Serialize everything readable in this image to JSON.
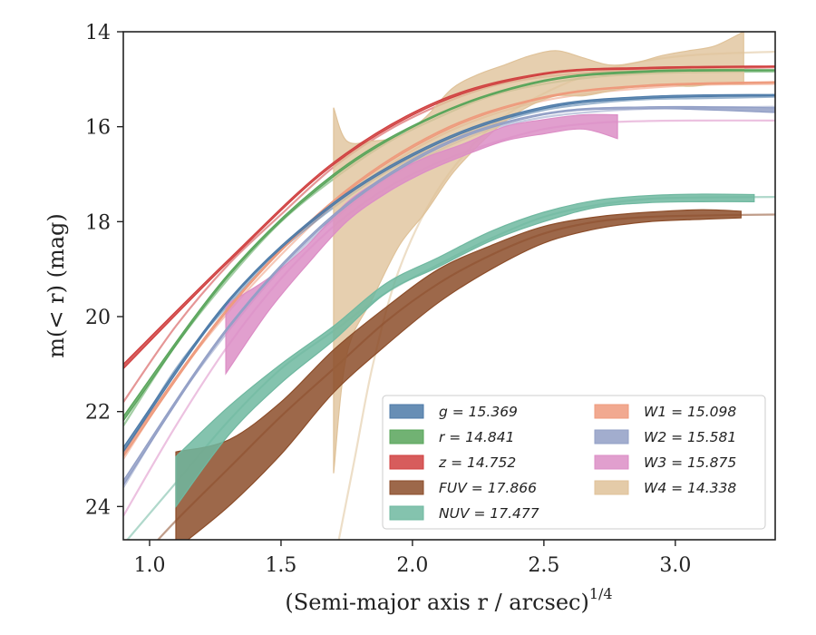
{
  "chart_data": {
    "type": "area",
    "xlabel": "(Semi-major axis r / arcsec)",
    "xlabel_superscript": "1/4",
    "ylabel": "m(< r) (mag)",
    "xlim": [
      0.9,
      3.38
    ],
    "ylim": [
      24.7,
      14.0
    ],
    "y_inverted": true,
    "grid": false,
    "legend_placement": "lower-right",
    "legend_columns": 2,
    "x_ticks": [
      "1.0",
      "1.5",
      "2.0",
      "2.5",
      "3.0"
    ],
    "y_ticks": [
      "14",
      "16",
      "18",
      "20",
      "22",
      "24"
    ],
    "colors": {
      "g": "#4c7aa8",
      "r": "#58a55a",
      "z": "#d03f3f",
      "FUV": "#8c4d2a",
      "NUV": "#6fb8a0",
      "W1": "#ee9a7c",
      "W2": "#929fc6",
      "W3": "#dc8ec6",
      "W4": "#dfc299"
    },
    "series": [
      {
        "name": "g = 15.369",
        "band": "g",
        "model_x": [
          0.9,
          1.1,
          1.3,
          1.5,
          1.7,
          1.9,
          2.1,
          2.3,
          2.5,
          2.7,
          2.9,
          3.1,
          3.38
        ],
        "model_y": [
          22.9,
          21.1,
          19.75,
          18.6,
          17.7,
          16.95,
          16.4,
          15.95,
          15.65,
          15.5,
          15.42,
          15.4,
          15.37
        ],
        "band_x": [
          0.9,
          1.3,
          1.7,
          2.1,
          2.5,
          2.9,
          3.38
        ],
        "band_lo": [
          22.85,
          19.7,
          17.65,
          16.35,
          15.62,
          15.4,
          15.35
        ],
        "band_hi": [
          22.75,
          19.65,
          17.6,
          16.3,
          15.58,
          15.36,
          15.32
        ]
      },
      {
        "name": "r = 14.841",
        "band": "r",
        "model_x": [
          0.9,
          1.1,
          1.3,
          1.5,
          1.7,
          1.9,
          2.1,
          2.3,
          2.5,
          2.7,
          2.9,
          3.1,
          3.38
        ],
        "model_y": [
          22.3,
          20.6,
          19.2,
          18.0,
          17.1,
          16.35,
          15.8,
          15.35,
          15.1,
          14.95,
          14.88,
          14.85,
          14.84
        ],
        "band_x": [
          0.9,
          1.3,
          1.7,
          2.1,
          2.5,
          2.9,
          3.38
        ],
        "band_lo": [
          22.2,
          19.15,
          17.05,
          15.75,
          15.05,
          14.85,
          14.82
        ],
        "band_hi": [
          22.1,
          19.1,
          17.0,
          15.72,
          15.02,
          14.82,
          14.8
        ]
      },
      {
        "name": "z = 14.752",
        "band": "z",
        "model_x": [
          0.9,
          1.1,
          1.3,
          1.5,
          1.7,
          1.9,
          2.1,
          2.3,
          2.5,
          2.7,
          2.9,
          3.1,
          3.38
        ],
        "model_y": [
          21.8,
          20.2,
          18.9,
          17.85,
          16.85,
          16.1,
          15.55,
          15.15,
          14.95,
          14.85,
          14.8,
          14.78,
          14.75
        ],
        "band_x": [
          0.9,
          1.3,
          1.7,
          2.1,
          2.5,
          2.9,
          3.38
        ],
        "band_lo": [
          21.1,
          18.85,
          16.8,
          15.5,
          14.9,
          14.78,
          14.74
        ],
        "band_hi": [
          21.0,
          18.8,
          16.75,
          15.45,
          14.87,
          14.75,
          14.72
        ]
      },
      {
        "name": "FUV = 17.866",
        "band": "FUV",
        "model_x": [
          0.95,
          1.1,
          1.3,
          1.5,
          1.7,
          1.9,
          2.1,
          2.3,
          2.5,
          2.7,
          2.9,
          3.1,
          3.38
        ],
        "model_y": [
          25.2,
          24.3,
          23.2,
          22.1,
          21.1,
          20.1,
          19.3,
          18.7,
          18.25,
          18.0,
          17.9,
          17.87,
          17.85
        ],
        "band_x": [
          1.1,
          1.3,
          1.5,
          1.7,
          1.9,
          2.1,
          2.3,
          2.5,
          2.7,
          2.9,
          3.1,
          3.25
        ],
        "band_lo": [
          24.9,
          24.0,
          22.9,
          21.6,
          20.6,
          19.7,
          19.0,
          18.45,
          18.15,
          18.0,
          17.95,
          17.92
        ],
        "band_hi": [
          22.85,
          22.6,
          21.8,
          20.7,
          19.8,
          19.0,
          18.5,
          18.1,
          17.9,
          17.8,
          17.75,
          17.78
        ]
      },
      {
        "name": "NUV = 17.477",
        "band": "NUV",
        "model_x": [
          0.9,
          1.1,
          1.3,
          1.5,
          1.7,
          1.9,
          2.1,
          2.3,
          2.5,
          2.7,
          2.9,
          3.1,
          3.38
        ],
        "model_y": [
          24.8,
          23.5,
          22.2,
          21.1,
          20.3,
          19.5,
          18.9,
          18.35,
          17.9,
          17.65,
          17.52,
          17.49,
          17.48
        ],
        "band_x": [
          1.1,
          1.3,
          1.5,
          1.7,
          1.9,
          2.1,
          2.3,
          2.5,
          2.7,
          2.9,
          3.1,
          3.3
        ],
        "band_lo": [
          24.0,
          22.5,
          21.4,
          20.5,
          19.5,
          18.95,
          18.4,
          18.0,
          17.7,
          17.6,
          17.58,
          17.58
        ],
        "band_hi": [
          22.95,
          21.9,
          21.0,
          20.2,
          19.3,
          18.75,
          18.2,
          17.8,
          17.55,
          17.45,
          17.42,
          17.43
        ]
      },
      {
        "name": "W1 = 15.098",
        "band": "W1",
        "model_x": [
          0.9,
          1.1,
          1.3,
          1.5,
          1.7,
          1.9,
          2.1,
          2.3,
          2.5,
          2.7,
          2.9,
          3.1,
          3.38
        ],
        "model_y": [
          23.0,
          21.3,
          19.9,
          18.7,
          17.65,
          16.85,
          16.2,
          15.75,
          15.45,
          15.28,
          15.18,
          15.12,
          15.1
        ],
        "band_x": [
          0.9,
          1.3,
          1.7,
          2.1,
          2.5,
          2.9,
          3.38
        ],
        "band_lo": [
          22.95,
          19.85,
          17.6,
          16.15,
          15.4,
          15.15,
          15.08
        ],
        "band_hi": [
          22.85,
          19.8,
          17.55,
          16.1,
          15.37,
          15.12,
          15.05
        ]
      },
      {
        "name": "W2 = 15.581",
        "band": "W2",
        "model_x": [
          0.9,
          1.1,
          1.3,
          1.5,
          1.7,
          1.9,
          2.1,
          2.3,
          2.5,
          2.7,
          2.9,
          3.1,
          3.38
        ],
        "model_y": [
          23.6,
          21.8,
          20.3,
          19.0,
          17.95,
          17.1,
          16.5,
          16.05,
          15.8,
          15.68,
          15.62,
          15.6,
          15.58
        ],
        "band_x": [
          0.9,
          1.3,
          1.7,
          2.1,
          2.5,
          2.9,
          3.38
        ],
        "band_lo": [
          23.55,
          20.25,
          17.9,
          16.45,
          15.75,
          15.62,
          15.7
        ],
        "band_hi": [
          23.45,
          20.2,
          17.85,
          16.4,
          15.72,
          15.58,
          15.6
        ]
      },
      {
        "name": "W3 = 15.875",
        "band": "W3",
        "model_x": [
          0.9,
          1.1,
          1.3,
          1.5,
          1.7,
          1.9,
          2.1,
          2.3,
          2.5,
          2.7,
          2.9,
          3.1,
          3.38
        ],
        "model_y": [
          24.2,
          22.3,
          20.6,
          19.2,
          18.1,
          17.3,
          16.75,
          16.35,
          16.05,
          15.92,
          15.88,
          15.87,
          15.87
        ],
        "band_x": [
          1.29,
          1.45,
          1.6,
          1.75,
          1.9,
          2.05,
          2.2,
          2.35,
          2.5,
          2.65,
          2.78
        ],
        "band_lo": [
          21.2,
          19.9,
          18.9,
          18.0,
          17.4,
          16.95,
          16.6,
          16.3,
          16.15,
          16.05,
          16.25
        ],
        "band_hi": [
          19.75,
          19.2,
          18.5,
          17.6,
          17.05,
          16.65,
          16.35,
          16.0,
          15.85,
          15.75,
          15.75
        ]
      },
      {
        "name": "W4 = 14.338",
        "band": "W4",
        "model_x": [
          1.72,
          1.78,
          1.85,
          1.95,
          2.1,
          2.3,
          2.5,
          2.7,
          2.9,
          3.1,
          3.38
        ],
        "model_y": [
          24.7,
          23.0,
          21.0,
          19.0,
          17.3,
          16.0,
          15.3,
          14.85,
          14.6,
          14.48,
          14.42
        ],
        "band_x": [
          1.7,
          1.75,
          1.85,
          1.95,
          2.05,
          2.15,
          2.25,
          2.35,
          2.45,
          2.55,
          2.65,
          2.75,
          2.85,
          2.95,
          3.05,
          3.15,
          3.26
        ],
        "band_lo": [
          23.3,
          20.8,
          19.6,
          18.5,
          17.8,
          17.0,
          16.4,
          15.9,
          15.55,
          15.35,
          15.35,
          15.25,
          15.15,
          15.1,
          15.15,
          15.1,
          15.1
        ],
        "band_hi": [
          15.6,
          16.3,
          16.3,
          16.2,
          15.8,
          15.2,
          14.9,
          14.7,
          14.5,
          14.4,
          14.55,
          14.7,
          14.65,
          14.5,
          14.4,
          14.3,
          14.0
        ]
      }
    ],
    "legend_col1": [
      {
        "band": "g",
        "label": "g = 15.369"
      },
      {
        "band": "r",
        "label": "r = 14.841"
      },
      {
        "band": "z",
        "label": "z = 14.752"
      },
      {
        "band": "FUV",
        "label": "FUV = 17.866"
      },
      {
        "band": "NUV",
        "label": "NUV = 17.477"
      }
    ],
    "legend_col2": [
      {
        "band": "W1",
        "label": "W1 = 15.098"
      },
      {
        "band": "W2",
        "label": "W2 = 15.581"
      },
      {
        "band": "W3",
        "label": "W3 = 15.875"
      },
      {
        "band": "W4",
        "label": "W4 = 14.338"
      }
    ]
  }
}
